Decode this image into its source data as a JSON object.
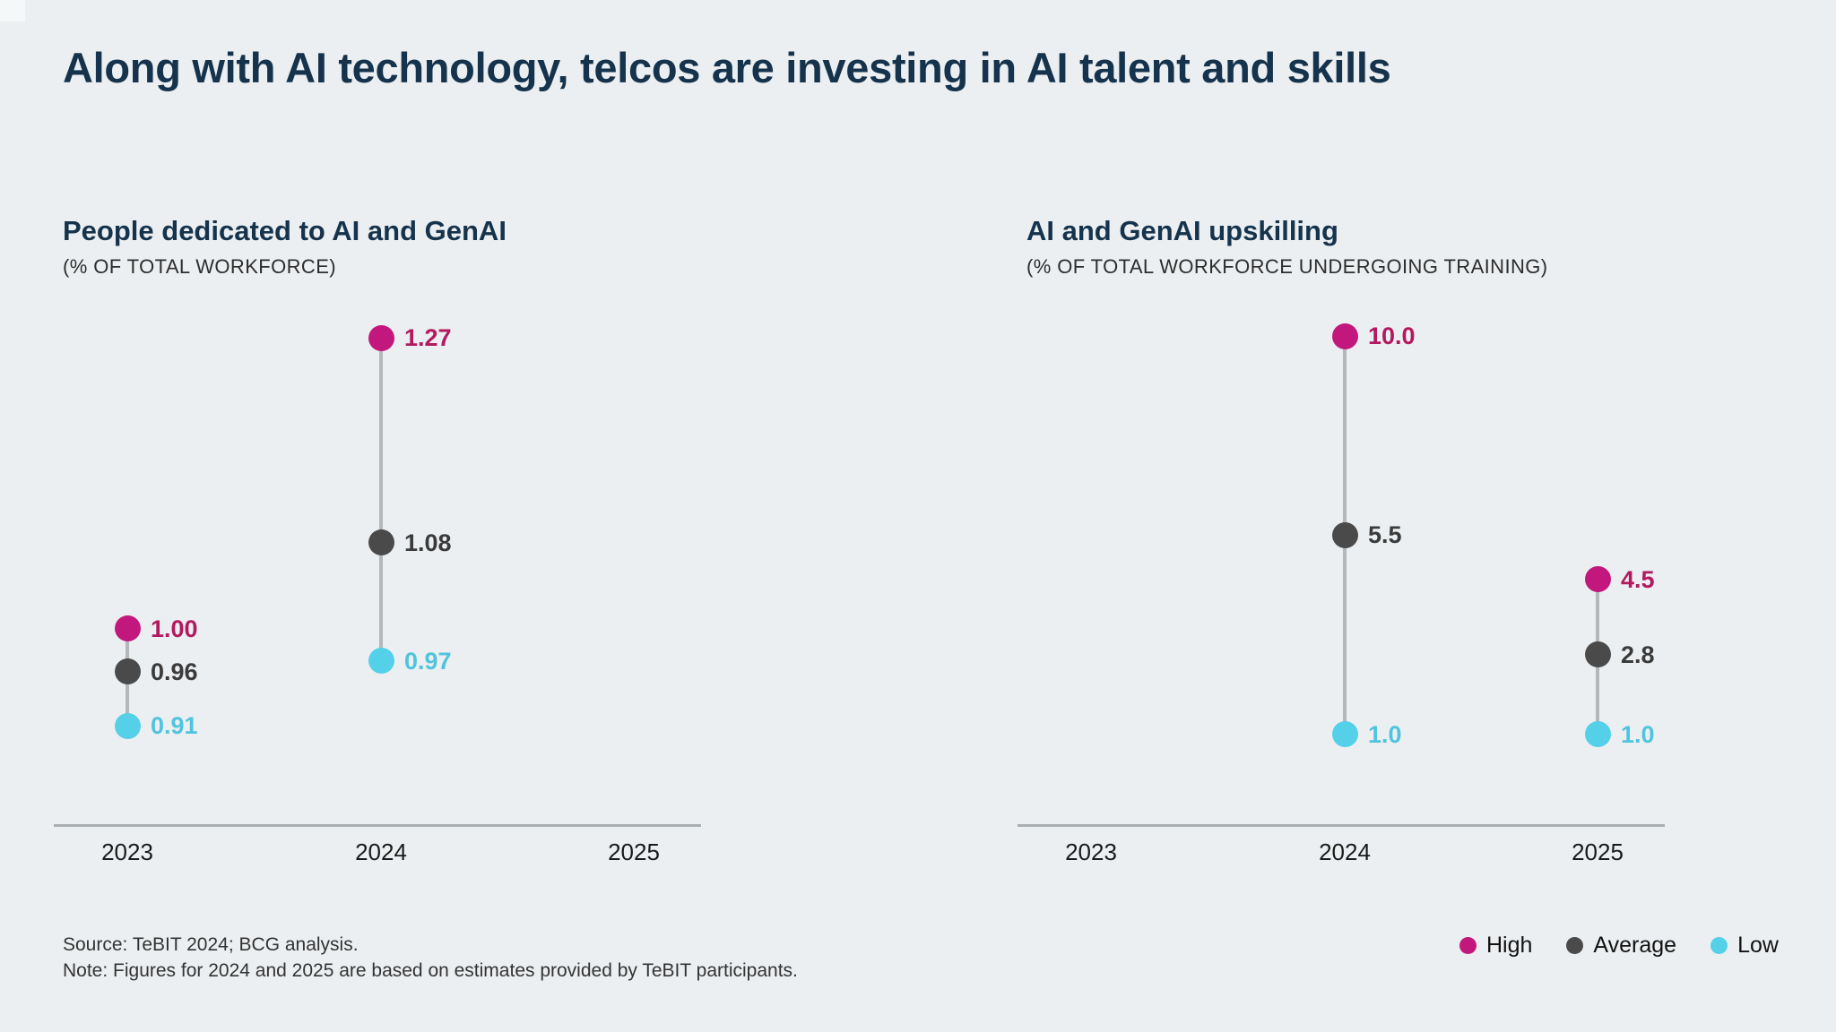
{
  "page": {
    "title": "Along with AI technology, telcos are investing in AI talent and skills",
    "background_color": "#eceff1",
    "title_color": "#15334c"
  },
  "legend": {
    "position": "bottom-right",
    "items": [
      {
        "label": "High",
        "color": "#c2187e"
      },
      {
        "label": "Average",
        "color": "#4a4a4a"
      },
      {
        "label": "Low",
        "color": "#54d1e8"
      }
    ]
  },
  "footnotes": {
    "source": "Source: TeBIT 2024; BCG analysis.",
    "note": "Note: Figures for 2024 and 2025 are based on estimates provided by TeBIT participants."
  },
  "chart_data": [
    {
      "type": "scatter",
      "variant": "vertical-dot-range",
      "title": "People dedicated to AI and GenAI",
      "subtitle": "(% OF TOTAL WORKFORCE)",
      "xlabel": "",
      "ylabel": "",
      "categories": [
        "2023",
        "2024",
        "2025"
      ],
      "ylim": [
        0.85,
        1.35
      ],
      "grid": false,
      "series": [
        {
          "name": "High",
          "color": "#c2187e",
          "label_color": "#b2195f",
          "values": [
            1.0,
            1.27,
            null
          ],
          "labels": [
            "1.00",
            "1.27",
            ""
          ]
        },
        {
          "name": "Average",
          "color": "#4a4a4a",
          "label_color": "#3b3b3b",
          "values": [
            0.96,
            1.08,
            null
          ],
          "labels": [
            "0.96",
            "1.08",
            ""
          ]
        },
        {
          "name": "Low",
          "color": "#54d1e8",
          "label_color": "#4fc4de",
          "values": [
            0.91,
            0.97,
            null
          ],
          "labels": [
            "0.91",
            "0.97",
            ""
          ]
        }
      ]
    },
    {
      "type": "scatter",
      "variant": "vertical-dot-range",
      "title": "AI and GenAI upskilling",
      "subtitle": "(% OF TOTAL WORKFORCE UNDERGOING TRAINING)",
      "xlabel": "",
      "ylabel": "",
      "categories": [
        "2023",
        "2024",
        "2025"
      ],
      "ylim": [
        0,
        11
      ],
      "grid": false,
      "series": [
        {
          "name": "High",
          "color": "#c2187e",
          "label_color": "#b2195f",
          "values": [
            null,
            10.0,
            4.5
          ],
          "labels": [
            "",
            "10.0",
            "4.5"
          ]
        },
        {
          "name": "Average",
          "color": "#4a4a4a",
          "label_color": "#3b3b3b",
          "values": [
            null,
            5.5,
            2.8
          ],
          "labels": [
            "",
            "5.5",
            "2.8"
          ]
        },
        {
          "name": "Low",
          "color": "#54d1e8",
          "label_color": "#4fc4de",
          "values": [
            null,
            1.0,
            1.0
          ],
          "labels": [
            "",
            "1.0",
            "1.0"
          ]
        }
      ]
    }
  ]
}
